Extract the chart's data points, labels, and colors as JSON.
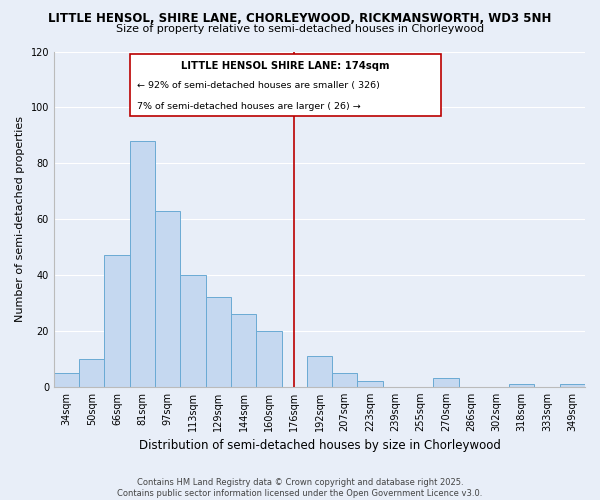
{
  "title": "LITTLE HENSOL, SHIRE LANE, CHORLEYWOOD, RICKMANSWORTH, WD3 5NH",
  "subtitle": "Size of property relative to semi-detached houses in Chorleywood",
  "xlabel": "Distribution of semi-detached houses by size in Chorleywood",
  "ylabel": "Number of semi-detached properties",
  "categories": [
    "34sqm",
    "50sqm",
    "66sqm",
    "81sqm",
    "97sqm",
    "113sqm",
    "129sqm",
    "144sqm",
    "160sqm",
    "176sqm",
    "192sqm",
    "207sqm",
    "223sqm",
    "239sqm",
    "255sqm",
    "270sqm",
    "286sqm",
    "302sqm",
    "318sqm",
    "333sqm",
    "349sqm"
  ],
  "values": [
    5,
    10,
    47,
    88,
    63,
    40,
    32,
    26,
    20,
    0,
    11,
    5,
    2,
    0,
    0,
    3,
    0,
    0,
    1,
    0,
    1
  ],
  "bar_color": "#c5d8f0",
  "bar_edge_color": "#6aaad4",
  "vline_x": 9.0,
  "vline_label": "LITTLE HENSOL SHIRE LANE: 174sqm",
  "smaller_pct": "92%",
  "smaller_n": "326",
  "larger_pct": "7%",
  "larger_n": "26",
  "ylim": [
    0,
    120
  ],
  "yticks": [
    0,
    20,
    40,
    60,
    80,
    100,
    120
  ],
  "annotation_box_color": "#ffffff",
  "annotation_box_edge": "#bb0000",
  "vline_color": "#bb0000",
  "footer1": "Contains HM Land Registry data © Crown copyright and database right 2025.",
  "footer2": "Contains public sector information licensed under the Open Government Licence v3.0.",
  "bg_color": "#e8eef8",
  "grid_color": "#ffffff",
  "title_fontsize": 8.5,
  "subtitle_fontsize": 8.0,
  "ylabel_fontsize": 8.0,
  "xlabel_fontsize": 8.5,
  "tick_fontsize": 7.0,
  "annot_title_fontsize": 7.2,
  "annot_text_fontsize": 6.8
}
